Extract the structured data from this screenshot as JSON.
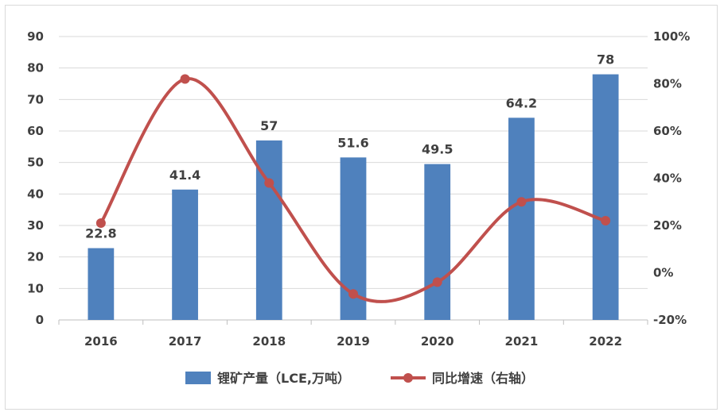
{
  "chart_data": {
    "type": "bar+line",
    "categories": [
      "2016",
      "2017",
      "2018",
      "2019",
      "2020",
      "2021",
      "2022"
    ],
    "series": [
      {
        "name": "锂矿产量（LCE,万吨）",
        "type": "bar",
        "axis": "left",
        "values": [
          22.8,
          41.4,
          57,
          51.6,
          49.5,
          64.2,
          78
        ],
        "labels": [
          "22.8",
          "41.4",
          "57",
          "51.6",
          "49.5",
          "64.2",
          "78"
        ],
        "color": "#4f81bd"
      },
      {
        "name": "同比增速（右轴）",
        "type": "line",
        "axis": "right",
        "values": [
          21,
          82,
          38,
          -9,
          -4,
          30,
          22
        ],
        "color": "#c0504d"
      }
    ],
    "left_axis": {
      "min": 0,
      "max": 90,
      "step": 10,
      "ticks": [
        "0",
        "10",
        "20",
        "30",
        "40",
        "50",
        "60",
        "70",
        "80",
        "90"
      ]
    },
    "right_axis": {
      "min": -20,
      "max": 100,
      "step": 20,
      "ticks": [
        "-20%",
        "0%",
        "20%",
        "40%",
        "60%",
        "80%",
        "100%"
      ]
    },
    "gridlines": true,
    "legend_position": "bottom"
  }
}
